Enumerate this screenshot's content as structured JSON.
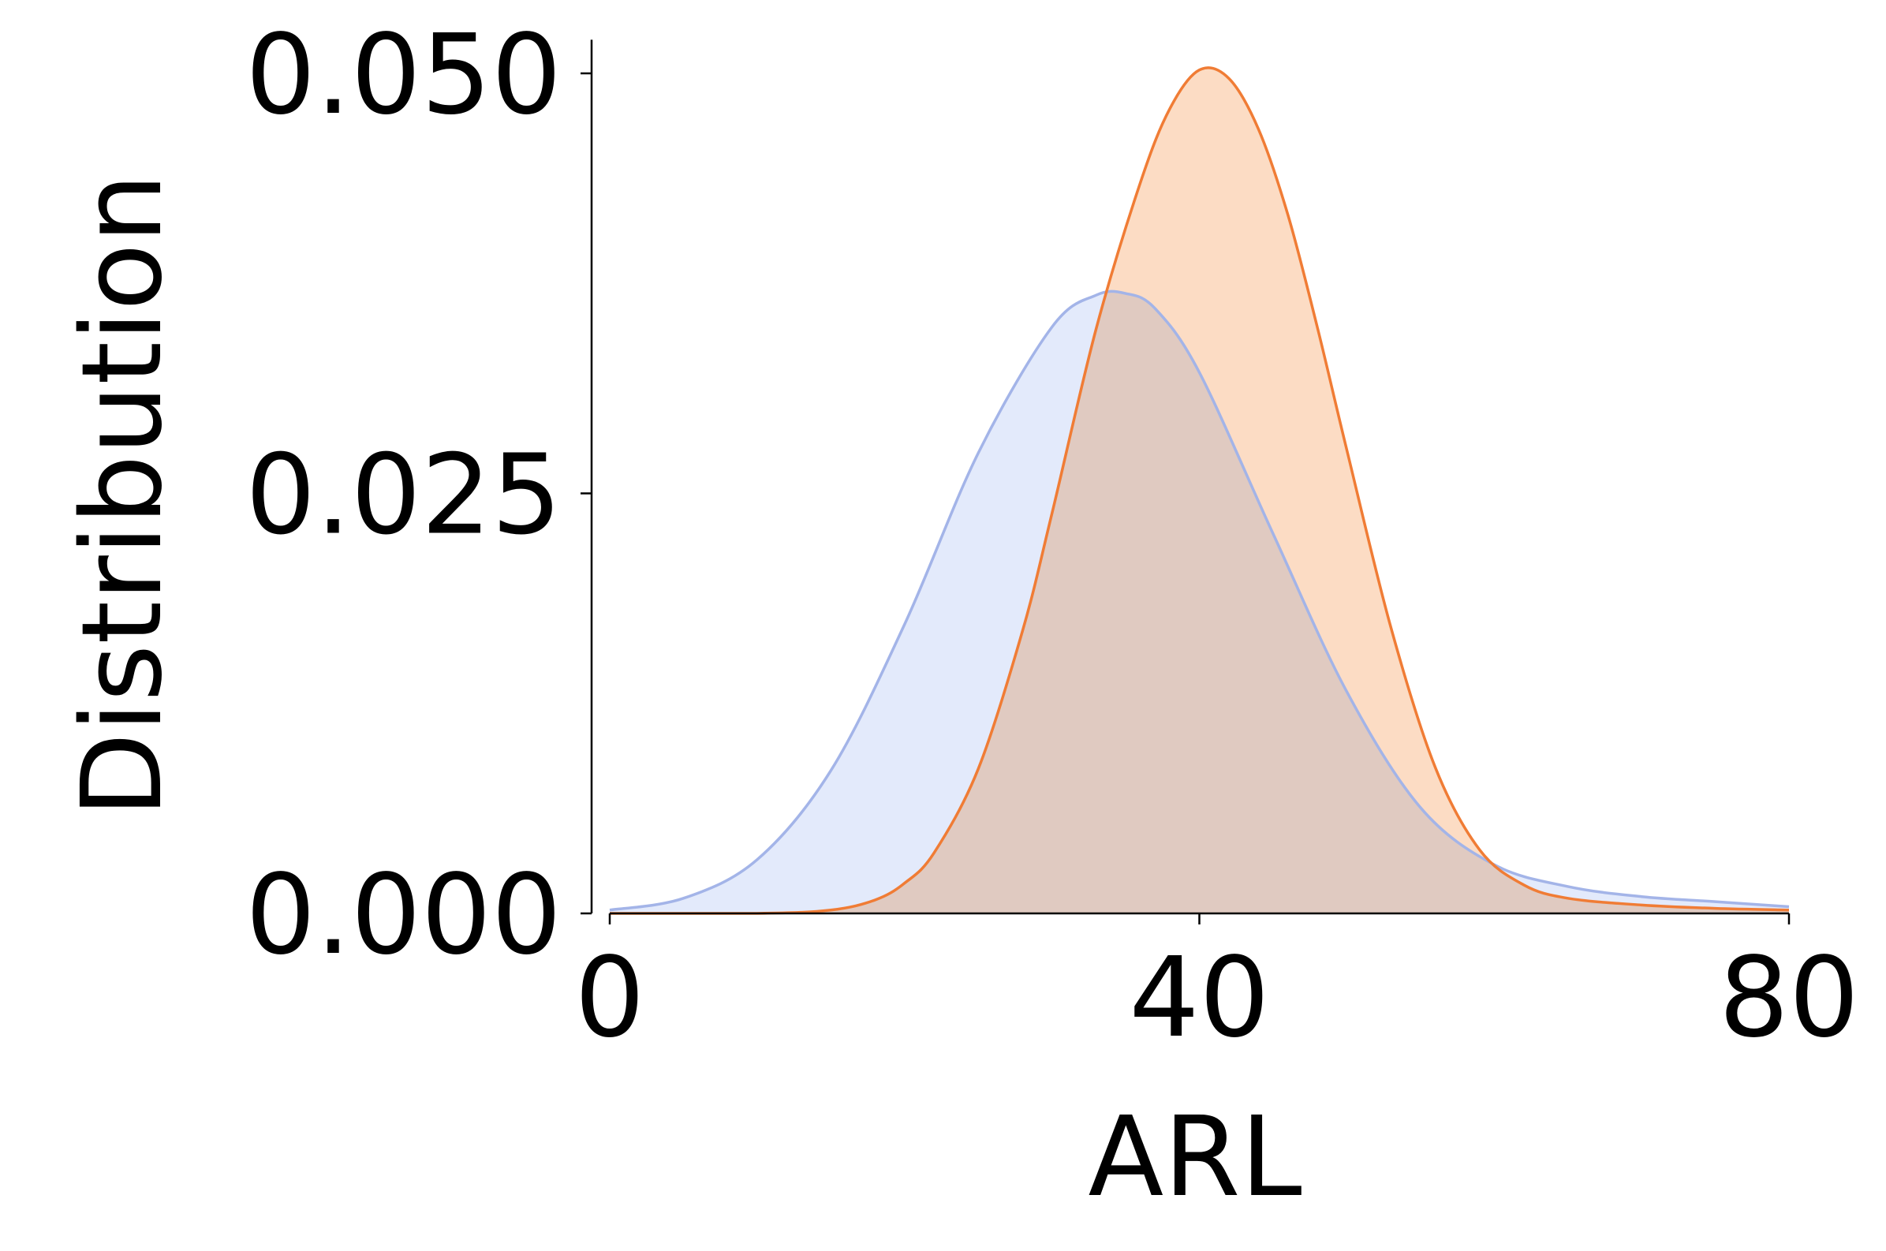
{
  "chart_data": {
    "type": "area",
    "xlabel": "ARL",
    "ylabel": "Distribution",
    "xlim": [
      -1,
      80
    ],
    "ylim": [
      0,
      0.052
    ],
    "xticks": [
      0,
      40,
      80
    ],
    "xtick_labels": [
      "0",
      "40",
      "80"
    ],
    "yticks": [
      0.0,
      0.025,
      0.05
    ],
    "ytick_labels": [
      "0.000",
      "0.025",
      "0.050"
    ],
    "grid": false,
    "legend": "none",
    "series": [
      {
        "color": "#a3b4e8",
        "fill": "#e3eafb",
        "x": [
          0,
          5,
          10,
          15,
          20,
          25,
          30,
          33,
          35,
          37,
          40,
          45,
          50,
          55,
          60,
          65,
          70,
          75,
          80
        ],
        "y": [
          0.0002,
          0.0009,
          0.0032,
          0.0085,
          0.0172,
          0.0274,
          0.0349,
          0.0368,
          0.0369,
          0.036,
          0.0322,
          0.0226,
          0.0132,
          0.0063,
          0.0029,
          0.0016,
          0.001,
          0.0007,
          0.0004
        ]
      },
      {
        "color": "#f07c35",
        "fill": "#fcdcc4",
        "x": [
          0,
          10,
          15,
          18,
          20,
          22,
          25,
          28,
          30,
          33,
          36,
          38,
          40,
          42,
          44,
          46,
          48,
          50,
          53,
          56,
          59,
          62,
          65,
          70,
          75,
          80
        ],
        "y": [
          0.0,
          0.0,
          0.0002,
          0.0008,
          0.0018,
          0.0036,
          0.0086,
          0.0168,
          0.0238,
          0.0348,
          0.0435,
          0.0479,
          0.0502,
          0.0497,
          0.0467,
          0.0416,
          0.0349,
          0.0276,
          0.017,
          0.0087,
          0.0038,
          0.0017,
          0.0009,
          0.0005,
          0.0003,
          0.0002
        ]
      }
    ]
  }
}
